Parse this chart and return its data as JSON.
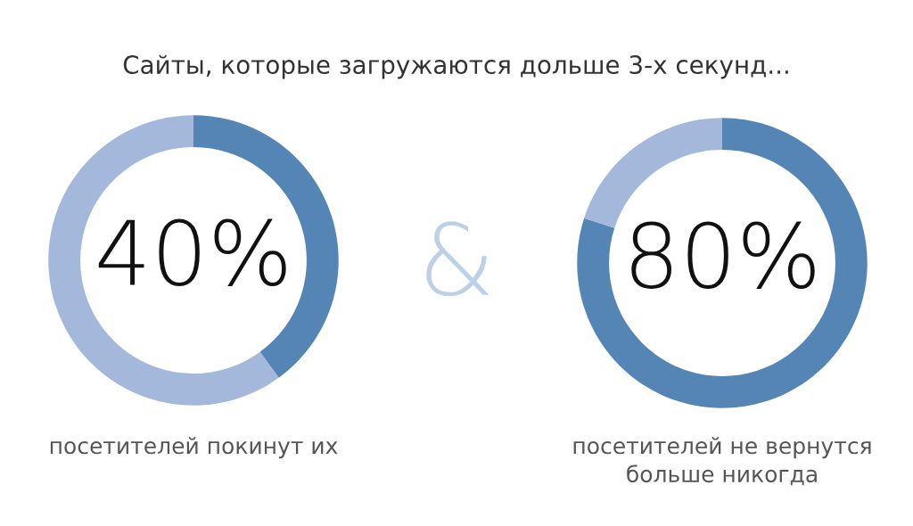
{
  "chart_data": [
    {
      "type": "donut",
      "title": "Сайты, которые загружаются дольше 3-х секунд...",
      "categories": [
        null,
        null
      ],
      "values": [
        40,
        60
      ],
      "colors": [
        "#5585b5",
        "#a3b8da"
      ],
      "value_labels": [
        "40%",
        null
      ],
      "annotations": [
        "посетителей покинут их",
        "&"
      ]
    },
    {
      "type": "donut",
      "categories": [
        null,
        null
      ],
      "values": [
        80,
        20
      ],
      "colors": [
        "#5585b5",
        "#a3b8da"
      ],
      "value_labels": [
        "80%",
        null
      ],
      "annotations": [
        "посетителей не вернутся\nбольше никогда"
      ]
    }
  ]
}
